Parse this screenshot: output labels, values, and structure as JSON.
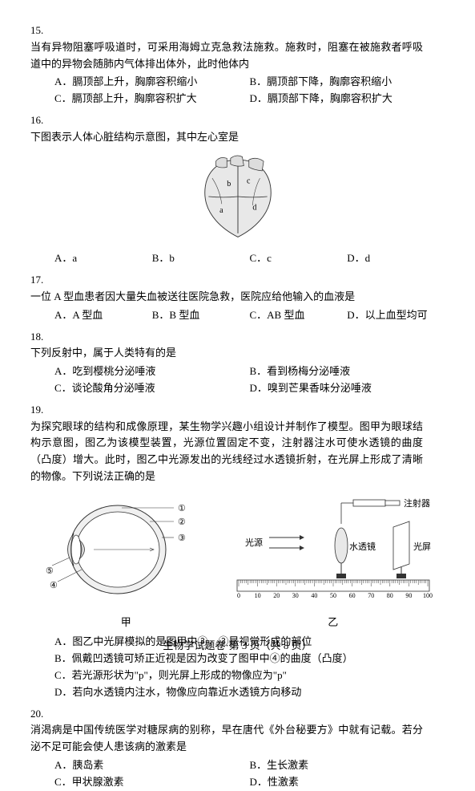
{
  "questions": {
    "q15": {
      "num": "15.",
      "stem": "当有异物阻塞呼吸道时，可采用海姆立克急救法施救。施救时，阻塞在被施救者呼吸道中的异物会随肺内气体排出体外，此时他体内",
      "opts": {
        "A": "A．膈顶部上升，胸廓容积缩小",
        "B": "B．膈顶部下降，胸廓容积缩小",
        "C": "C．膈顶部上升，胸廓容积扩大",
        "D": "D．膈顶部下降，胸廓容积扩大"
      }
    },
    "q16": {
      "num": "16.",
      "stem": "下图表示人体心脏结构示意图，其中左心室是",
      "opts": {
        "A": "A．a",
        "B": "B．b",
        "C": "C．c",
        "D": "D．d"
      },
      "heart_labels": {
        "a": "a",
        "b": "b",
        "c": "c",
        "d": "d"
      }
    },
    "q17": {
      "num": "17.",
      "stem": "一位 A 型血患者因大量失血被送往医院急救，医院应给他输入的血液是",
      "opts": {
        "A": "A．A 型血",
        "B": "B．B 型血",
        "C": "C．AB 型血",
        "D": "D．以上血型均可"
      }
    },
    "q18": {
      "num": "18.",
      "stem": "下列反射中，属于人类特有的是",
      "opts": {
        "A": "A．吃到樱桃分泌唾液",
        "B": "B．看到杨梅分泌唾液",
        "C": "C．谈论酸角分泌唾液",
        "D": "D．嗅到芒果香味分泌唾液"
      }
    },
    "q19": {
      "num": "19.",
      "stem": "为探究眼球的结构和成像原理，某生物学兴趣小组设计并制作了模型。图甲为眼球结构示意图，图乙为该模型装置，光源位置固定不变，注射器注水可使水透镜的曲度（凸度）增大。此时，图乙中光源发出的光线经过水透镜折射，在光屏上形成了清晰的物像。下列说法正确的是",
      "opts": {
        "A": "A．图乙中光屏模拟的是图甲中③，③是视觉形成的部位",
        "B": "B．佩戴凹透镜可矫正近视是因为改变了图甲中④的曲度（凸度）",
        "C": "C．若光源形状为\"p\"，则光屏上形成的物像应为\"p\"",
        "D": "D．若向水透镜内注水，物像应向靠近水透镜方向移动"
      },
      "eye_labels": {
        "l1": "①",
        "l2": "②",
        "l3": "③",
        "l4": "④",
        "l5": "⑤"
      },
      "caption_left": "甲",
      "caption_right": "乙",
      "apparatus": {
        "syringe": "注射器",
        "light": "光源",
        "lens": "水透镜",
        "screen": "光屏"
      },
      "ruler": {
        "min": 0,
        "max": 100,
        "step": 10
      }
    },
    "q20": {
      "num": "20.",
      "stem": "消渴病是中国传统医学对糖尿病的别称，早在唐代《外台秘要方》中就有记载。若分泌不足可能会使人患该病的激素是",
      "opts": {
        "A": "A．胰岛素",
        "B": "B．生长激素",
        "C": "C．甲状腺激素",
        "D": "D．性激素"
      }
    }
  },
  "footer": "生物学试题卷·第 3 页（共 8 页）",
  "colors": {
    "text": "#000000",
    "bg": "#ffffff",
    "line": "#333333",
    "fill_light": "#dddddd",
    "fill_mid": "#bbbbbb"
  }
}
